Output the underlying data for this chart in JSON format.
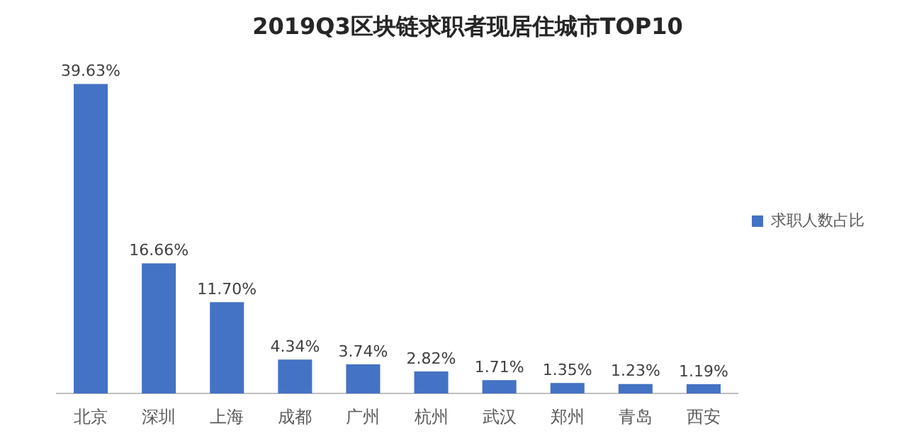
{
  "chart_data": {
    "type": "bar",
    "title": "2019Q3区块链求职者现居住城市TOP10",
    "categories": [
      "北京",
      "深圳",
      "上海",
      "成都",
      "广州",
      "杭州",
      "武汉",
      "郑州",
      "青岛",
      "西安"
    ],
    "series": [
      {
        "name": "求职人数占比",
        "color": "#4472c4",
        "values": [
          39.63,
          16.66,
          11.7,
          4.34,
          3.74,
          2.82,
          1.71,
          1.35,
          1.23,
          1.19
        ],
        "value_labels": [
          "39.63%",
          "16.66%",
          "11.70%",
          "4.34%",
          "3.74%",
          "2.82%",
          "1.71%",
          "1.35%",
          "1.23%",
          "1.19%"
        ]
      }
    ],
    "legend": "right",
    "grid": false
  }
}
